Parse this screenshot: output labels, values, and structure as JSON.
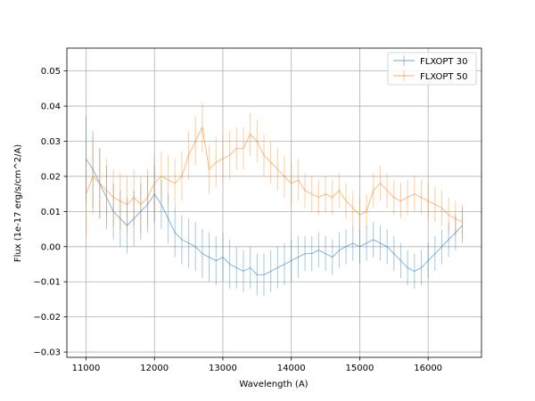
{
  "chart_data": {
    "type": "line",
    "title": "",
    "xlabel": "Wavelength (A)",
    "ylabel": "Flux (1e-17 erg/s/cm^2/A)",
    "xlim": [
      10720,
      16780
    ],
    "ylim": [
      -0.0315,
      0.0565
    ],
    "grid": true,
    "legend_position": "top-right",
    "x_ticks": [
      11000,
      12000,
      13000,
      14000,
      15000,
      16000
    ],
    "y_ticks": [
      -0.03,
      -0.02,
      -0.01,
      0.0,
      0.01,
      0.02,
      0.03,
      0.04,
      0.05
    ],
    "x_tick_labels": [
      "11000",
      "12000",
      "13000",
      "14000",
      "15000",
      "16000"
    ],
    "y_tick_labels": [
      "−0.03",
      "−0.02",
      "−0.01",
      "0.00",
      "0.01",
      "0.02",
      "0.03",
      "0.04",
      "0.05"
    ],
    "x_range": [
      11000,
      16500
    ],
    "series": [
      {
        "name": "FLXOPT 30",
        "color": "#1f77b4",
        "x": [
          11000,
          11100,
          11200,
          11300,
          11400,
          11500,
          11600,
          11700,
          11800,
          11900,
          12000,
          12100,
          12200,
          12300,
          12400,
          12500,
          12600,
          12700,
          12800,
          12900,
          13000,
          13100,
          13200,
          13300,
          13400,
          13500,
          13600,
          13700,
          13800,
          13900,
          14000,
          14100,
          14200,
          14300,
          14400,
          14500,
          14600,
          14700,
          14800,
          14900,
          15000,
          15100,
          15200,
          15300,
          15400,
          15500,
          15600,
          15700,
          15800,
          15900,
          16000,
          16100,
          16200,
          16300,
          16400,
          16500
        ],
        "y": [
          0.025,
          0.022,
          0.018,
          0.014,
          0.01,
          0.008,
          0.006,
          0.008,
          0.01,
          0.012,
          0.015,
          0.012,
          0.008,
          0.004,
          0.002,
          0.001,
          0.0,
          -0.002,
          -0.003,
          -0.004,
          -0.003,
          -0.005,
          -0.006,
          -0.007,
          -0.006,
          -0.008,
          -0.008,
          -0.007,
          -0.006,
          -0.005,
          -0.004,
          -0.003,
          -0.002,
          -0.002,
          -0.001,
          -0.002,
          -0.003,
          -0.001,
          0.0,
          0.001,
          0.0,
          0.001,
          0.002,
          0.001,
          0.0,
          -0.002,
          -0.004,
          -0.006,
          -0.007,
          -0.006,
          -0.004,
          -0.002,
          0.0,
          0.002,
          0.004,
          0.006
        ],
        "err": [
          0.012,
          0.011,
          0.01,
          0.009,
          0.008,
          0.008,
          0.008,
          0.008,
          0.008,
          0.008,
          0.008,
          0.007,
          0.007,
          0.007,
          0.007,
          0.007,
          0.007,
          0.007,
          0.007,
          0.007,
          0.007,
          0.007,
          0.006,
          0.006,
          0.006,
          0.006,
          0.006,
          0.006,
          0.006,
          0.006,
          0.006,
          0.006,
          0.005,
          0.005,
          0.005,
          0.005,
          0.005,
          0.005,
          0.005,
          0.005,
          0.005,
          0.005,
          0.005,
          0.005,
          0.005,
          0.005,
          0.005,
          0.005,
          0.005,
          0.005,
          0.005,
          0.005,
          0.005,
          0.005,
          0.005,
          0.005
        ]
      },
      {
        "name": "FLXOPT 50",
        "color": "#ff7f0e",
        "x": [
          11000,
          11100,
          11200,
          11300,
          11400,
          11500,
          11600,
          11700,
          11800,
          11900,
          12000,
          12100,
          12200,
          12300,
          12400,
          12500,
          12600,
          12700,
          12800,
          12900,
          13000,
          13100,
          13200,
          13300,
          13400,
          13500,
          13600,
          13700,
          13800,
          13900,
          14000,
          14100,
          14200,
          14300,
          14400,
          14500,
          14600,
          14700,
          14800,
          14900,
          15000,
          15100,
          15200,
          15300,
          15400,
          15500,
          15600,
          15700,
          15800,
          15900,
          16000,
          16100,
          16200,
          16300,
          16400,
          16500
        ],
        "y": [
          0.015,
          0.02,
          0.018,
          0.016,
          0.014,
          0.013,
          0.012,
          0.014,
          0.012,
          0.014,
          0.018,
          0.02,
          0.019,
          0.018,
          0.02,
          0.026,
          0.03,
          0.034,
          0.022,
          0.024,
          0.025,
          0.026,
          0.028,
          0.028,
          0.032,
          0.03,
          0.026,
          0.024,
          0.022,
          0.02,
          0.018,
          0.019,
          0.016,
          0.015,
          0.014,
          0.015,
          0.014,
          0.016,
          0.013,
          0.011,
          0.009,
          0.01,
          0.016,
          0.018,
          0.016,
          0.014,
          0.013,
          0.014,
          0.015,
          0.014,
          0.013,
          0.012,
          0.011,
          0.009,
          0.008,
          0.007
        ],
        "err": [
          0.012,
          0.011,
          0.01,
          0.009,
          0.008,
          0.008,
          0.008,
          0.008,
          0.008,
          0.008,
          0.008,
          0.007,
          0.007,
          0.007,
          0.007,
          0.007,
          0.007,
          0.007,
          0.007,
          0.007,
          0.007,
          0.007,
          0.006,
          0.006,
          0.006,
          0.006,
          0.006,
          0.006,
          0.006,
          0.006,
          0.006,
          0.006,
          0.005,
          0.005,
          0.005,
          0.005,
          0.005,
          0.005,
          0.005,
          0.005,
          0.005,
          0.005,
          0.005,
          0.005,
          0.005,
          0.005,
          0.005,
          0.005,
          0.005,
          0.005,
          0.005,
          0.005,
          0.005,
          0.005,
          0.005,
          0.005
        ]
      }
    ]
  }
}
